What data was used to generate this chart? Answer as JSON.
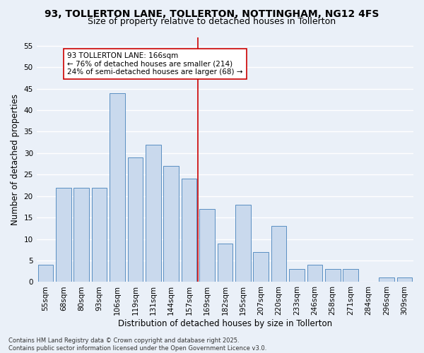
{
  "title1": "93, TOLLERTON LANE, TOLLERTON, NOTTINGHAM, NG12 4FS",
  "title2": "Size of property relative to detached houses in Tollerton",
  "xlabel": "Distribution of detached houses by size in Tollerton",
  "ylabel": "Number of detached properties",
  "bin_labels": [
    "55sqm",
    "68sqm",
    "80sqm",
    "93sqm",
    "106sqm",
    "119sqm",
    "131sqm",
    "144sqm",
    "157sqm",
    "169sqm",
    "182sqm",
    "195sqm",
    "207sqm",
    "220sqm",
    "233sqm",
    "246sqm",
    "258sqm",
    "271sqm",
    "284sqm",
    "296sqm",
    "309sqm"
  ],
  "bar_heights": [
    4,
    22,
    22,
    22,
    44,
    29,
    32,
    27,
    24,
    17,
    9,
    18,
    7,
    13,
    3,
    4,
    3,
    3,
    0,
    1,
    1
  ],
  "bar_color": "#c9d9ed",
  "bar_edge_color": "#5a8fc2",
  "background_color": "#eaf0f8",
  "grid_color": "#ffffff",
  "vline_color": "#cc0000",
  "annotation_text": "93 TOLLERTON LANE: 166sqm\n← 76% of detached houses are smaller (214)\n24% of semi-detached houses are larger (68) →",
  "annotation_box_color": "#ffffff",
  "annotation_box_edge": "#cc0000",
  "ylim": [
    0,
    57
  ],
  "yticks": [
    0,
    5,
    10,
    15,
    20,
    25,
    30,
    35,
    40,
    45,
    50,
    55
  ],
  "footer": "Contains HM Land Registry data © Crown copyright and database right 2025.\nContains public sector information licensed under the Open Government Licence v3.0.",
  "title1_fontsize": 10,
  "title2_fontsize": 9,
  "xlabel_fontsize": 8.5,
  "ylabel_fontsize": 8.5,
  "tick_fontsize": 7.5,
  "annotation_fontsize": 7.5,
  "footer_fontsize": 6
}
